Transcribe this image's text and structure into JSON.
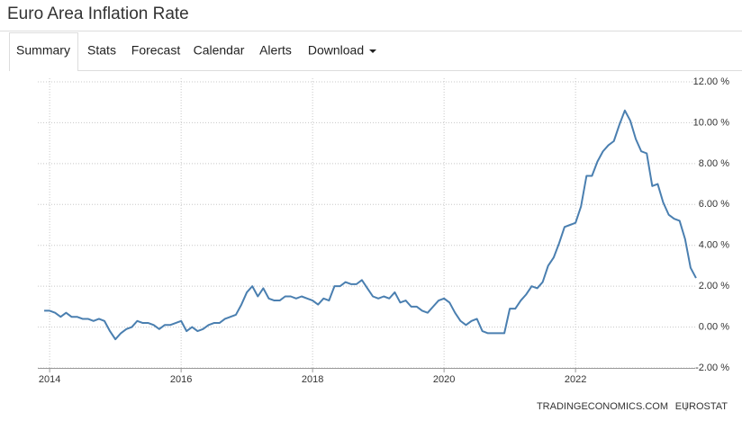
{
  "header": {
    "title": "Euro Area Inflation Rate"
  },
  "tabs": [
    "Summary",
    "Stats",
    "Forecast",
    "Calendar",
    "Alerts",
    "Download"
  ],
  "chart_data": {
    "type": "line",
    "x": [
      2013.917,
      2014.0,
      2014.083,
      2014.167,
      2014.25,
      2014.333,
      2014.417,
      2014.5,
      2014.583,
      2014.667,
      2014.75,
      2014.833,
      2014.917,
      2015.0,
      2015.083,
      2015.167,
      2015.25,
      2015.333,
      2015.417,
      2015.5,
      2015.583,
      2015.667,
      2015.75,
      2015.833,
      2015.917,
      2016.0,
      2016.083,
      2016.167,
      2016.25,
      2016.333,
      2016.417,
      2016.5,
      2016.583,
      2016.667,
      2016.75,
      2016.833,
      2016.917,
      2017.0,
      2017.083,
      2017.167,
      2017.25,
      2017.333,
      2017.417,
      2017.5,
      2017.583,
      2017.667,
      2017.75,
      2017.833,
      2017.917,
      2018.0,
      2018.083,
      2018.167,
      2018.25,
      2018.333,
      2018.417,
      2018.5,
      2018.583,
      2018.667,
      2018.75,
      2018.833,
      2018.917,
      2019.0,
      2019.083,
      2019.167,
      2019.25,
      2019.333,
      2019.417,
      2019.5,
      2019.583,
      2019.667,
      2019.75,
      2019.833,
      2019.917,
      2020.0,
      2020.083,
      2020.167,
      2020.25,
      2020.333,
      2020.417,
      2020.5,
      2020.583,
      2020.667,
      2020.75,
      2020.833,
      2020.917,
      2021.0,
      2021.083,
      2021.167,
      2021.25,
      2021.333,
      2021.417,
      2021.5,
      2021.583,
      2021.667,
      2021.75,
      2021.833,
      2021.917,
      2022.0,
      2022.083,
      2022.167,
      2022.25,
      2022.333,
      2022.417,
      2022.5,
      2022.583,
      2022.667,
      2022.75,
      2022.833,
      2022.917,
      2023.0,
      2023.083,
      2023.167,
      2023.25,
      2023.333,
      2023.417,
      2023.5,
      2023.583,
      2023.667,
      2023.75,
      2023.833
    ],
    "series": [
      {
        "color": "#4a7fb0",
        "values": [
          0.8,
          0.8,
          0.7,
          0.5,
          0.7,
          0.5,
          0.5,
          0.4,
          0.4,
          0.3,
          0.4,
          0.3,
          -0.2,
          -0.6,
          -0.3,
          -0.1,
          0.0,
          0.3,
          0.2,
          0.2,
          0.1,
          -0.1,
          0.1,
          0.1,
          0.2,
          0.3,
          -0.2,
          0.0,
          -0.2,
          -0.1,
          0.1,
          0.2,
          0.2,
          0.4,
          0.5,
          0.6,
          1.1,
          1.7,
          2.0,
          1.5,
          1.9,
          1.4,
          1.3,
          1.3,
          1.5,
          1.5,
          1.4,
          1.5,
          1.4,
          1.3,
          1.1,
          1.4,
          1.3,
          2.0,
          2.0,
          2.2,
          2.1,
          2.1,
          2.3,
          1.9,
          1.5,
          1.4,
          1.5,
          1.4,
          1.7,
          1.2,
          1.3,
          1.0,
          1.0,
          0.8,
          0.7,
          1.0,
          1.3,
          1.4,
          1.2,
          0.7,
          0.3,
          0.1,
          0.3,
          0.4,
          -0.2,
          -0.3,
          -0.3,
          -0.3,
          -0.3,
          0.9,
          0.9,
          1.3,
          1.6,
          2.0,
          1.9,
          2.2,
          3.0,
          3.4,
          4.1,
          4.9,
          5.0,
          5.1,
          5.9,
          7.4,
          7.4,
          8.1,
          8.6,
          8.9,
          9.1,
          9.9,
          10.6,
          10.1,
          9.2,
          8.6,
          8.5,
          6.9,
          7.0,
          6.1,
          5.5,
          5.3,
          5.2,
          4.3,
          2.9,
          2.4
        ]
      }
    ],
    "xlim": [
      2013.82,
      2023.82
    ],
    "xticks": [
      2014,
      2016,
      2018,
      2020,
      2022
    ],
    "ylim": [
      -2,
      12
    ],
    "yticks": [
      {
        "value": -2,
        "label": "-2.00 %"
      },
      {
        "value": 0,
        "label": "0.00 %"
      },
      {
        "value": 2,
        "label": "2.00 %"
      },
      {
        "value": 4,
        "label": "4.00 %"
      },
      {
        "value": 6,
        "label": "6.00 %"
      },
      {
        "value": 8,
        "label": "8.00 %"
      },
      {
        "value": 10,
        "label": "10.00 %"
      },
      {
        "value": 12,
        "label": "12.00 %"
      }
    ],
    "grid": true
  },
  "source": [
    "TRADINGECONOMICS.COM",
    "EUROSTAT"
  ]
}
